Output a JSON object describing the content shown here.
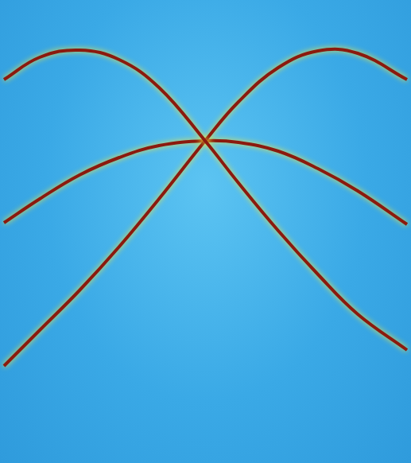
{
  "chart_data": {
    "type": "line",
    "x": [
      5,
      50,
      100,
      150,
      200,
      258,
      300,
      350,
      400,
      450,
      512
    ],
    "series": [
      {
        "color": "#8b1a0e",
        "values": [
          482,
          510,
          519,
          507,
          472,
          405,
          352,
          292,
          237,
          187,
          142
        ]
      },
      {
        "color": "#8b1a0e",
        "values": [
          122,
          167,
          217,
          272,
          332,
          405,
          454,
          497,
          518,
          515,
          482
        ]
      },
      {
        "color": "#8b1a0e",
        "values": [
          302,
          332,
          362,
          384,
          399,
          405,
          403,
          392,
          370,
          342,
          300
        ]
      }
    ],
    "xlim": [
      0,
      517
    ],
    "ylim": [
      0,
      582
    ],
    "grid": false,
    "tick_labels": false
  }
}
